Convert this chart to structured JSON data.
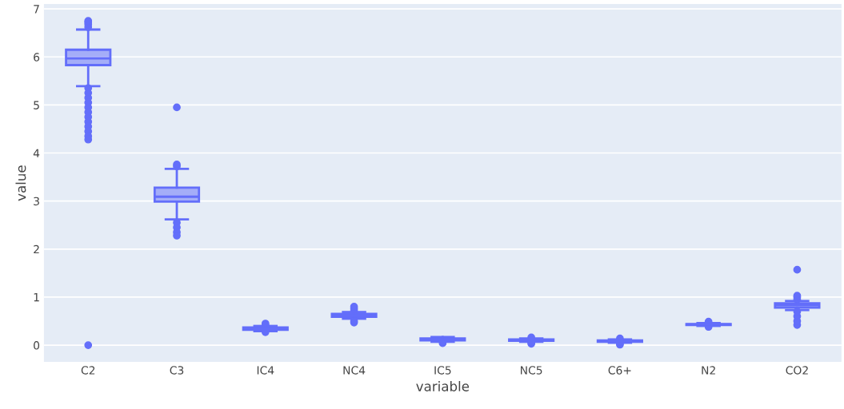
{
  "chart_data": {
    "type": "box",
    "xlabel": "variable",
    "ylabel": "value",
    "categories": [
      "C2",
      "C3",
      "IC4",
      "NC4",
      "IC5",
      "NC5",
      "C6+",
      "N2",
      "CO2"
    ],
    "series": [
      {
        "color": "#636efa",
        "boxes": [
          {
            "low": 5.39,
            "q1": 5.83,
            "median": 5.97,
            "q3": 6.15,
            "high": 6.57,
            "outliers": [
              6.62,
              6.68,
              6.72,
              6.75,
              5.35,
              5.25,
              5.15,
              5.05,
              4.95,
              4.85,
              4.75,
              4.65,
              4.55,
              4.45,
              4.35,
              4.28,
              0
            ]
          },
          {
            "low": 2.62,
            "q1": 2.99,
            "median": 3.09,
            "q3": 3.28,
            "high": 3.67,
            "outliers": [
              3.72,
              3.76,
              4.95,
              2.55,
              2.45,
              2.35,
              2.28
            ]
          },
          {
            "low": 0.29,
            "q1": 0.32,
            "median": 0.34,
            "q3": 0.37,
            "high": 0.4,
            "outliers": [
              0.27,
              0.42,
              0.45
            ]
          },
          {
            "low": 0.55,
            "q1": 0.59,
            "median": 0.62,
            "q3": 0.65,
            "high": 0.69,
            "outliers": [
              0.47,
              0.5,
              0.72,
              0.76,
              0.8
            ]
          },
          {
            "low": 0.07,
            "q1": 0.1,
            "median": 0.12,
            "q3": 0.14,
            "high": 0.17,
            "outliers": [
              0.04
            ]
          },
          {
            "low": 0.07,
            "q1": 0.09,
            "median": 0.11,
            "q3": 0.12,
            "high": 0.14,
            "outliers": [
              0.03,
              0.05,
              0.16
            ]
          },
          {
            "low": 0.05,
            "q1": 0.07,
            "median": 0.08,
            "q3": 0.1,
            "high": 0.12,
            "outliers": [
              0.01,
              0.03,
              0.14
            ]
          },
          {
            "low": 0.4,
            "q1": 0.42,
            "median": 0.43,
            "q3": 0.44,
            "high": 0.46,
            "outliers": [
              0.38,
              0.49
            ]
          },
          {
            "low": 0.73,
            "q1": 0.78,
            "median": 0.83,
            "q3": 0.87,
            "high": 0.92,
            "outliers": [
              0.42,
              0.5,
              0.6,
              0.7,
              0.95,
              1.0,
              1.03,
              1.57
            ]
          }
        ]
      }
    ],
    "ylim": [
      -0.35,
      7.1
    ],
    "yticks": [
      0,
      1,
      2,
      3,
      4,
      5,
      6,
      7
    ],
    "grid": "y",
    "marker": "circle"
  }
}
